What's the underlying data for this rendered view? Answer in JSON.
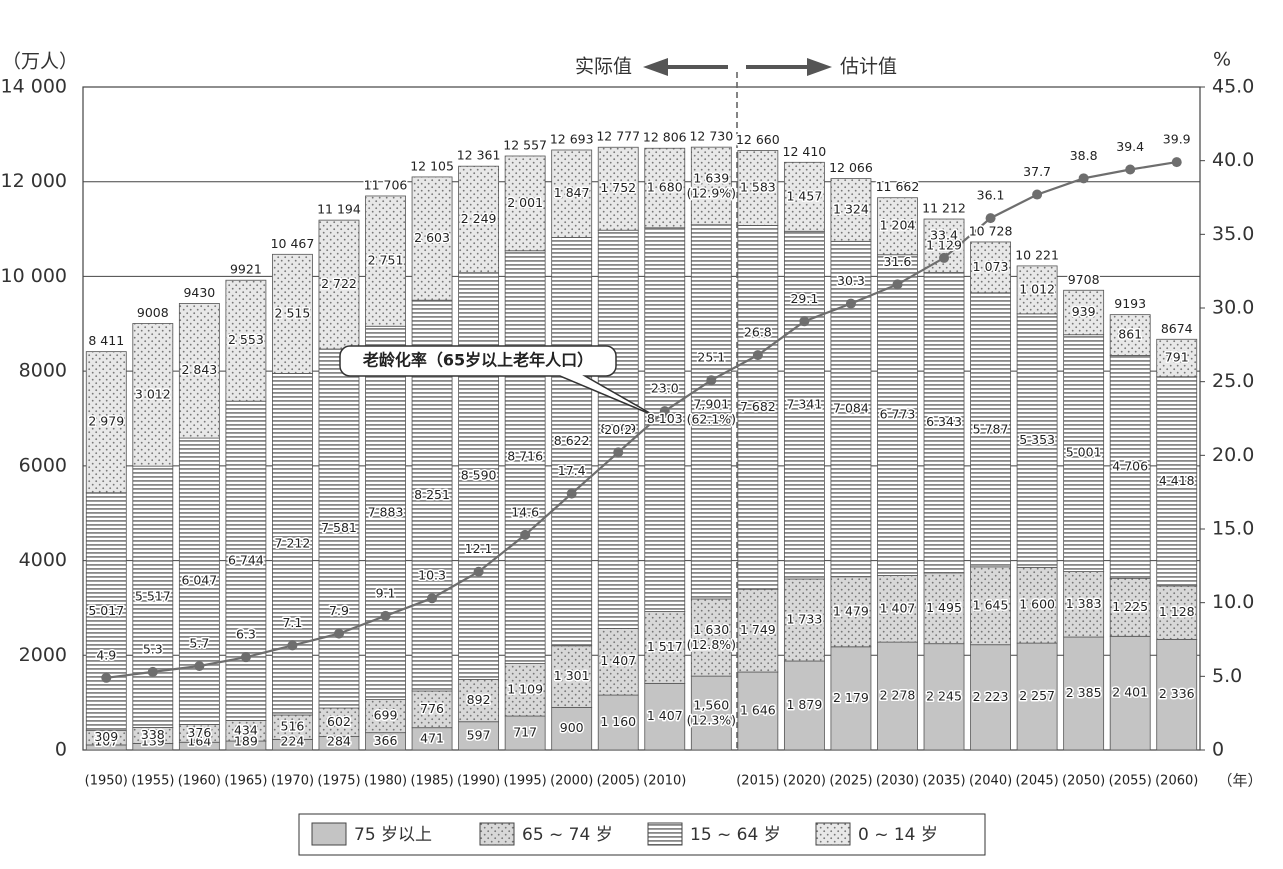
{
  "chart_data": {
    "type": "bar",
    "stacked": true,
    "y_label": "（万人）",
    "y2_label": "%",
    "x_label": "（年）",
    "annotations": [
      "实际值",
      "估计值"
    ],
    "categories": [
      "(1950)",
      "(1955)",
      "(1960)",
      "(1965)",
      "(1970)",
      "(1975)",
      "(1980)",
      "(1985)",
      "(1990)",
      "(1995)",
      "(2000)",
      "(2005)",
      "(2010)",
      null,
      "(2015)",
      "(2020)",
      "(2025)",
      "(2030)",
      "(2035)",
      "(2040)",
      "(2045)",
      "(2050)",
      "(2055)",
      "(2060)"
    ],
    "ylim": [
      0,
      14000
    ],
    "yticks": [
      0,
      2000,
      4000,
      6000,
      8000,
      {
        "value": 10000,
        "label": "10 000"
      },
      {
        "value": 12000,
        "label": "12 000"
      },
      {
        "value": 14000,
        "label": "14 000"
      }
    ],
    "y2lim": [
      0,
      45
    ],
    "y2ticks": [
      0,
      {
        "value": 5,
        "label": "5.0"
      },
      {
        "value": 10,
        "label": "10.0"
      },
      {
        "value": 15,
        "label": "15.0"
      },
      {
        "value": 20,
        "label": "20.0"
      },
      {
        "value": 25,
        "label": "25.0"
      },
      {
        "value": 30,
        "label": "30.0"
      },
      {
        "value": 35,
        "label": "35.0"
      },
      {
        "value": 40,
        "label": "40.0"
      },
      {
        "value": 45,
        "label": "45.0"
      }
    ],
    "grid": true,
    "legend": "bottom",
    "series": [
      {
        "name": "75 岁以上",
        "color": "#c4c4c4",
        "pattern": "solid",
        "values": [
          107,
          139,
          164,
          189,
          224,
          284,
          366,
          471,
          597,
          717,
          900,
          1160,
          1407,
          1560,
          1646,
          1879,
          2179,
          2278,
          2245,
          2223,
          2257,
          2385,
          2401,
          2336
        ],
        "value_labels": [
          "107",
          "139",
          "164",
          "189",
          "224",
          "284",
          "366",
          "471",
          "597",
          "717",
          "900",
          "1 160",
          "1 407",
          "1,560\n(12.3%)",
          "1 646",
          "1 879",
          "2 179",
          "2 278",
          "2 245",
          "2 223",
          "2 257",
          "2 385",
          "2 401",
          "2 336"
        ]
      },
      {
        "name": "65 ~ 74 岁",
        "color": "#d8d8d8",
        "pattern": "dots",
        "values": [
          309,
          338,
          376,
          434,
          516,
          602,
          699,
          776,
          892,
          1109,
          1301,
          1407,
          1517,
          1630,
          1749,
          1733,
          1479,
          1407,
          1495,
          1645,
          1600,
          1383,
          1225,
          1128
        ],
        "value_labels": [
          "309",
          "338",
          "376",
          "434",
          "516",
          "602",
          "699",
          "776",
          "892",
          "1 109",
          "1 301",
          "1 407",
          "1 517",
          "1 630\n(12.8%)",
          "1 749",
          "1 733",
          "1 479",
          "1 407",
          "1 495",
          "1 645",
          "1 600",
          "1 383",
          "1 225",
          "1 128"
        ]
      },
      {
        "name": "15 ~ 64 岁",
        "color": "#888888",
        "pattern": "stripes",
        "values": [
          5017,
          5517,
          6047,
          6744,
          7212,
          7581,
          7883,
          8251,
          8590,
          8716,
          8622,
          8409,
          8103,
          7901,
          7682,
          7341,
          7084,
          6773,
          6343,
          5787,
          5353,
          5001,
          4706,
          4418
        ],
        "value_labels": [
          "5 017",
          "5 517",
          "6 047",
          "6 744",
          "7 212",
          "7 581",
          "7 883",
          "8 251",
          "8 590",
          "8 716",
          "8 622",
          "8 409",
          "8 103",
          "7,901\n(62.1%)",
          "7 682",
          "7 341",
          "7 084",
          "6 773",
          "6 343",
          "5 787",
          "5 353",
          "5 001",
          "4 706",
          "4 418"
        ]
      },
      {
        "name": "0 ~ 14 岁",
        "color": "#e8e8e8",
        "pattern": "dots",
        "values": [
          2979,
          3012,
          2843,
          2553,
          2515,
          2722,
          2751,
          2603,
          2249,
          2001,
          1847,
          1752,
          1680,
          1639,
          1583,
          1457,
          1324,
          1204,
          1129,
          1073,
          1012,
          939,
          861,
          791
        ],
        "value_labels": [
          "2 979",
          "3 012",
          "2 843",
          "2 553",
          "2 515",
          "2 722",
          "2 751",
          "2 603",
          "2 249",
          "2 001",
          "1 847",
          "1 752",
          "1 680",
          "1 639\n(12.9%)",
          "1 583",
          "1 457",
          "1 324",
          "1 204",
          "1 129",
          "1 073",
          "1 012",
          "939",
          "861",
          "791"
        ]
      },
      {
        "name": "老龄化率（65岁以上老年人口）",
        "type": "line",
        "axis": "y2",
        "color": "#6e6e6e",
        "values": [
          4.9,
          5.3,
          5.7,
          6.3,
          7.1,
          7.9,
          9.1,
          10.3,
          12.1,
          14.6,
          17.4,
          20.2,
          23.0,
          25.1,
          26.8,
          29.1,
          30.3,
          31.6,
          33.4,
          36.1,
          37.7,
          38.8,
          39.4,
          39.9
        ],
        "value_labels": [
          "4.9",
          "5.3",
          "5.7",
          "6.3",
          "7.1",
          "7.9",
          "9.1",
          "10.3",
          "12.1",
          "14.6",
          "17.4",
          "20.2",
          "23.0",
          "25.1",
          "26.8",
          "29.1",
          "30.3",
          "31.6",
          "33.4",
          "36.1",
          "37.7",
          "38.8",
          "39.4",
          "39.9"
        ]
      }
    ],
    "totals": [
      8411,
      9008,
      9430,
      9921,
      10467,
      11194,
      11706,
      12105,
      12361,
      12557,
      12693,
      12777,
      12806,
      12730,
      12660,
      12410,
      12066,
      11662,
      11212,
      10728,
      10221,
      9708,
      9193,
      8674
    ],
    "total_labels": [
      "8 411",
      "9008",
      "9430",
      "9921",
      "10 467",
      "11 194",
      "11 706",
      "12 105",
      "12 361",
      "12 557",
      "12 693",
      "12 777",
      "12 806",
      "12 730",
      "12 660",
      "12 410",
      "12 066",
      "11 662",
      "11 212",
      "10 728",
      "10 221",
      "9708",
      "9193",
      "8674"
    ]
  }
}
